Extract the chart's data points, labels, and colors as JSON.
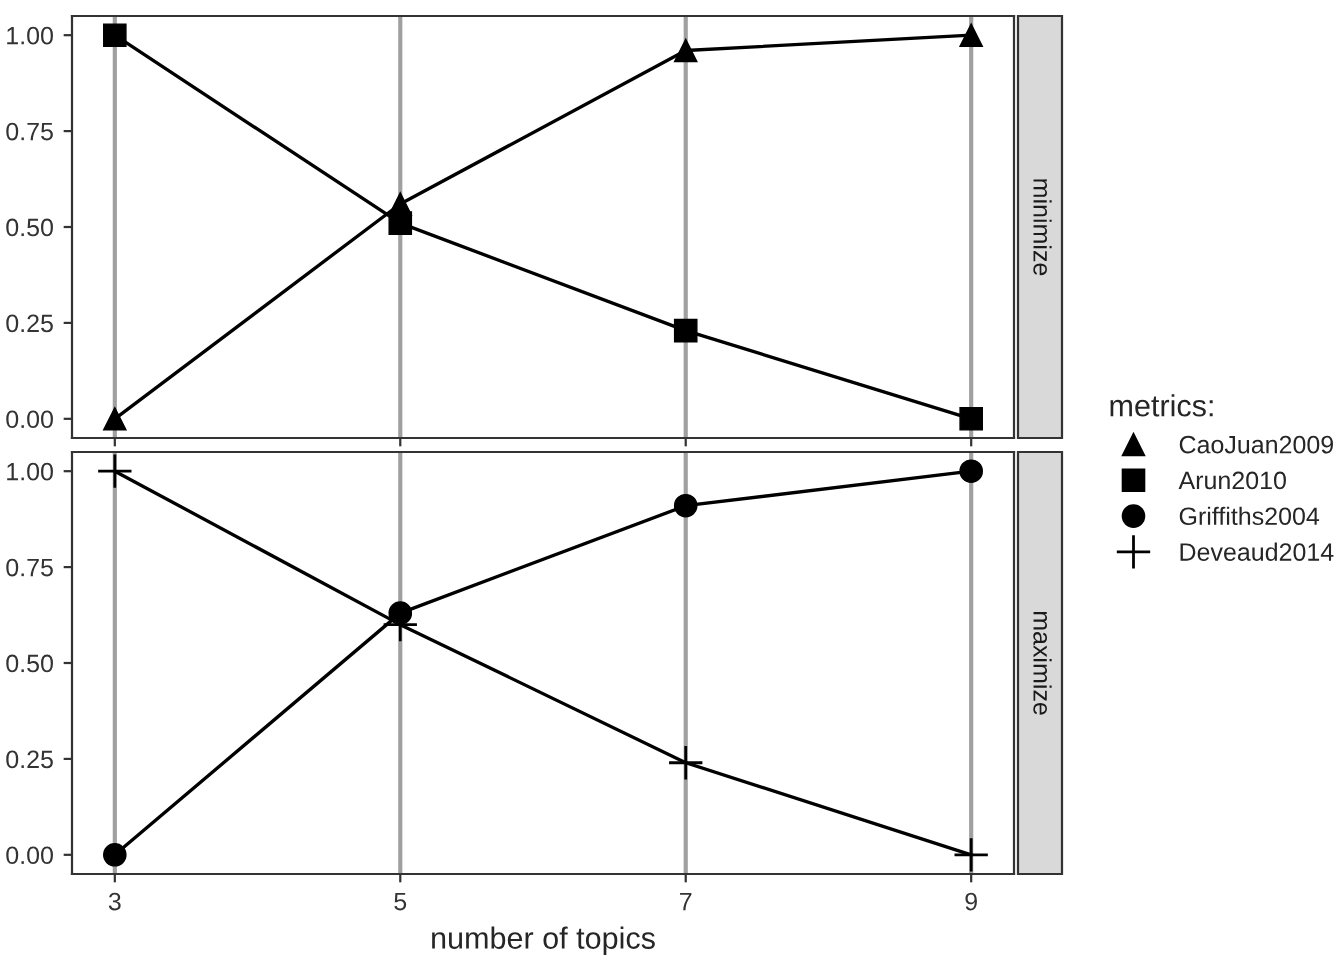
{
  "chart_data": [
    {
      "type": "line",
      "ylabel": "minimize",
      "x": [
        3,
        5,
        7,
        9
      ],
      "xlim": [
        2.7,
        9.3
      ],
      "xticks": [
        3,
        5,
        7,
        9
      ],
      "ylim": [
        -0.05,
        1.05
      ],
      "yticks": [
        {
          "value": 0,
          "label": "0.00"
        },
        {
          "value": 0.25,
          "label": "0.25"
        },
        {
          "value": 0.5,
          "label": "0.50"
        },
        {
          "value": 0.75,
          "label": "0.75"
        },
        {
          "value": 1,
          "label": "1.00"
        }
      ],
      "tick_labels": "y",
      "grid": "x",
      "legend": "right",
      "legend_title": "metrics:",
      "series": [
        {
          "name": "CaoJuan2009",
          "color": "#000000",
          "marker": "triangle",
          "values": [
            0.0,
            0.56,
            0.96,
            1.0
          ]
        },
        {
          "name": "Arun2010",
          "color": "#000000",
          "marker": "square",
          "values": [
            1.0,
            0.51,
            0.23,
            0.0
          ]
        }
      ]
    },
    {
      "type": "line",
      "ylabel": "maximize",
      "x": [
        3,
        5,
        7,
        9
      ],
      "xlim": [
        2.7,
        9.3
      ],
      "xticks": [
        3,
        5,
        7,
        9
      ],
      "ylim": [
        -0.05,
        1.05
      ],
      "yticks": [
        {
          "value": 0,
          "label": "0.00"
        },
        {
          "value": 0.25,
          "label": "0.25"
        },
        {
          "value": 0.5,
          "label": "0.50"
        },
        {
          "value": 0.75,
          "label": "0.75"
        },
        {
          "value": 1,
          "label": "1.00"
        }
      ],
      "xlabel": "number of topics",
      "grid": "x",
      "series": [
        {
          "name": "Griffiths2004",
          "color": "#000000",
          "marker": "circle",
          "values": [
            0.0,
            0.63,
            0.91,
            1.0
          ]
        },
        {
          "name": "Deveaud2014",
          "color": "#000000",
          "marker": "cross",
          "values": [
            1.0,
            0.6,
            0.24,
            0.0
          ]
        }
      ]
    }
  ]
}
